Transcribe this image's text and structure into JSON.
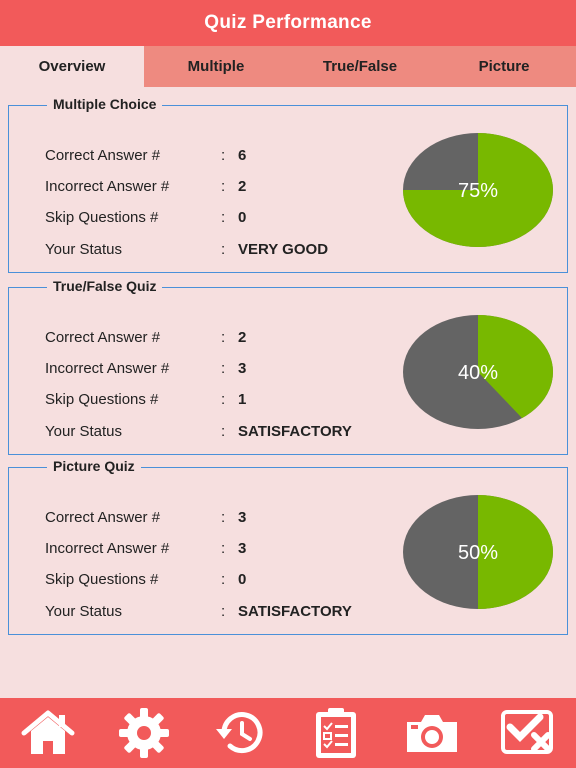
{
  "header": {
    "title": "Quiz Performance"
  },
  "tabs": [
    {
      "label": "Overview",
      "active": true
    },
    {
      "label": "Multiple",
      "active": false
    },
    {
      "label": "True/False",
      "active": false
    },
    {
      "label": "Picture",
      "active": false
    }
  ],
  "labels": {
    "correct": "Correct Answer #",
    "incorrect": "Incorrect Answer #",
    "skip": "Skip Questions #",
    "status": "Your Status",
    "colon": ":"
  },
  "cards": [
    {
      "title": "Multiple Choice",
      "correct": "6",
      "incorrect": "2",
      "skip": "0",
      "status": "VERY GOOD",
      "percent": 75,
      "percent_label": "75%"
    },
    {
      "title": "True/False Quiz",
      "correct": "2",
      "incorrect": "3",
      "skip": "1",
      "status": "SATISFACTORY",
      "percent": 40,
      "percent_label": "40%"
    },
    {
      "title": "Picture Quiz",
      "correct": "3",
      "incorrect": "3",
      "skip": "0",
      "status": "SATISFACTORY",
      "percent": 50,
      "percent_label": "50%"
    }
  ],
  "colors": {
    "header_bg": "#f25a5a",
    "tab_bg": "#ee8a80",
    "page_bg": "#f6dfdf",
    "card_border": "#4a90d9",
    "pie_correct": "#78b800",
    "pie_rest": "#646464"
  },
  "bottom_nav": [
    {
      "icon": "home-icon"
    },
    {
      "icon": "gear-icon"
    },
    {
      "icon": "history-icon"
    },
    {
      "icon": "clipboard-checklist-icon"
    },
    {
      "icon": "camera-icon"
    },
    {
      "icon": "check-cross-icon"
    }
  ]
}
